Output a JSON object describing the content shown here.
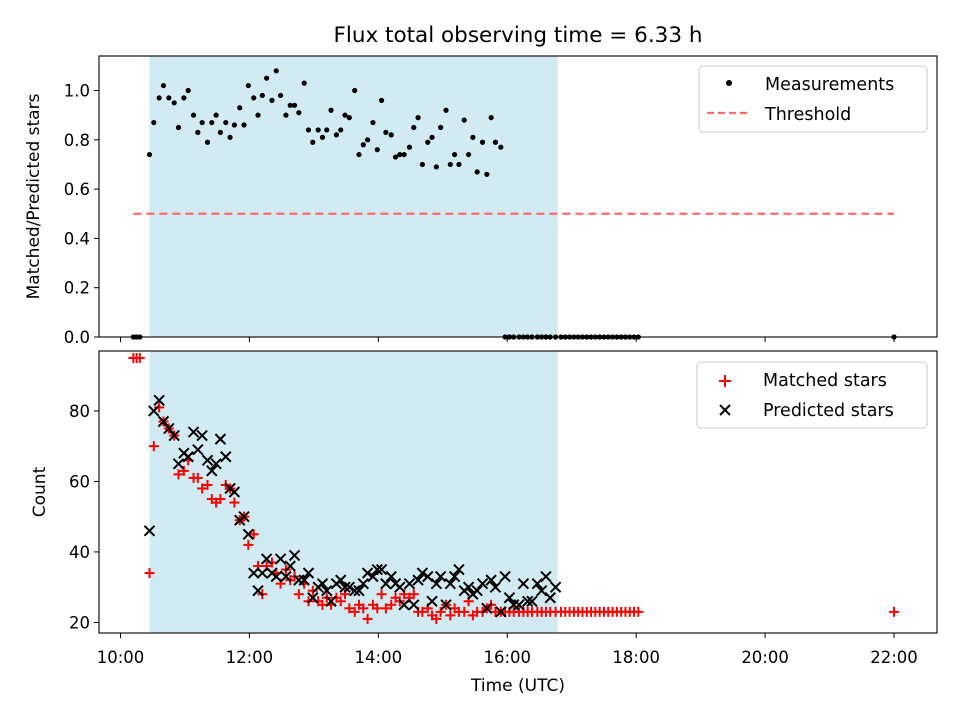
{
  "figure": {
    "title": "Flux total observing time = 6.33 h",
    "xlabel": "Time (UTC)",
    "colors": {
      "shade": "#add8e6",
      "threshold": "#ff6b6b",
      "matched": "#ff0000",
      "predicted": "#000000",
      "measurements": "#000000"
    }
  },
  "chart_data": [
    {
      "type": "scatter",
      "ylabel": "Matched/Predicted stars",
      "xlim": [
        "09:40",
        "22:40"
      ],
      "ylim": [
        0,
        1.14
      ],
      "yticks": [
        0.0,
        0.2,
        0.4,
        0.6,
        0.8,
        1.0
      ],
      "xticks": [
        "10:00",
        "12:00",
        "14:00",
        "16:00",
        "18:00",
        "20:00",
        "22:00"
      ],
      "shaded_interval": [
        "10:27",
        "16:47"
      ],
      "legend_position": "top-right",
      "threshold": {
        "name": "Threshold",
        "value": 0.5,
        "x_range": [
          "10:12",
          "22:00"
        ],
        "style": "dashed"
      },
      "series": [
        {
          "name": "Measurements",
          "x": [
            "10:12",
            "10:15",
            "10:18",
            "10:27",
            "10:31",
            "10:36",
            "10:40",
            "10:45",
            "10:50",
            "10:54",
            "10:59",
            "11:03",
            "11:08",
            "11:12",
            "11:16",
            "11:21",
            "11:25",
            "11:29",
            "11:33",
            "11:38",
            "11:42",
            "11:46",
            "11:51",
            "11:55",
            "11:59",
            "12:04",
            "12:08",
            "12:12",
            "12:16",
            "12:21",
            "12:25",
            "12:29",
            "12:34",
            "12:38",
            "12:42",
            "12:46",
            "12:51",
            "12:55",
            "12:59",
            "13:04",
            "13:08",
            "13:12",
            "13:16",
            "13:21",
            "13:25",
            "13:29",
            "13:33",
            "13:38",
            "13:42",
            "13:46",
            "13:50",
            "13:55",
            "13:59",
            "14:03",
            "14:07",
            "14:12",
            "14:16",
            "14:20",
            "14:24",
            "14:29",
            "14:33",
            "14:37",
            "14:41",
            "14:46",
            "14:50",
            "14:54",
            "14:58",
            "15:03",
            "15:07",
            "15:11",
            "15:15",
            "15:20",
            "15:24",
            "15:28",
            "15:32",
            "15:37",
            "15:41",
            "15:45",
            "15:49",
            "15:54",
            "15:58",
            "16:02",
            "16:06",
            "16:11",
            "16:15",
            "16:19",
            "16:23",
            "16:28",
            "16:32",
            "16:36",
            "16:40",
            "16:45",
            "16:50",
            "16:54",
            "16:58",
            "17:02",
            "17:06",
            "17:10",
            "17:14",
            "17:18",
            "17:22",
            "17:26",
            "17:30",
            "17:34",
            "17:38",
            "17:42",
            "17:46",
            "17:50",
            "17:54",
            "17:58",
            "18:02",
            "22:00"
          ],
          "y": [
            0,
            0,
            0,
            0.74,
            0.87,
            0.97,
            1.02,
            0.97,
            0.95,
            0.85,
            0.97,
            1.0,
            0.9,
            0.83,
            0.87,
            0.79,
            0.87,
            0.9,
            0.83,
            0.87,
            0.81,
            0.86,
            0.93,
            0.86,
            1.02,
            0.97,
            0.9,
            0.98,
            1.05,
            0.96,
            1.08,
            0.98,
            0.9,
            0.94,
            0.94,
            0.91,
            1.03,
            0.84,
            0.79,
            0.84,
            0.81,
            0.84,
            0.92,
            0.82,
            0.84,
            0.9,
            0.89,
            1.0,
            0.74,
            0.78,
            0.8,
            0.87,
            0.76,
            0.96,
            0.83,
            0.82,
            0.73,
            0.74,
            0.74,
            0.77,
            0.85,
            0.89,
            0.7,
            0.79,
            0.81,
            0.69,
            0.85,
            0.92,
            0.7,
            0.74,
            0.7,
            0.88,
            0.74,
            0.81,
            0.67,
            0.79,
            0.66,
            0.89,
            0.79,
            0.77,
            0,
            0,
            0,
            0,
            0,
            0,
            0,
            0,
            0,
            0,
            0,
            0,
            0,
            0,
            0,
            0,
            0,
            0,
            0,
            0,
            0,
            0,
            0,
            0,
            0,
            0,
            0,
            0,
            0,
            0,
            0,
            0
          ]
        }
      ]
    },
    {
      "type": "scatter",
      "ylabel": "Count",
      "xlabel": "Time (UTC)",
      "xlim": [
        "09:40",
        "22:40"
      ],
      "ylim": [
        17,
        97
      ],
      "yticks": [
        20,
        40,
        60,
        80
      ],
      "xticks": [
        "10:00",
        "12:00",
        "14:00",
        "16:00",
        "18:00",
        "20:00",
        "22:00"
      ],
      "shaded_interval": [
        "10:27",
        "16:47"
      ],
      "legend_position": "top-right",
      "series": [
        {
          "name": "Matched stars",
          "marker": "plus",
          "x": [
            "10:12",
            "10:15",
            "10:18",
            "10:27",
            "10:31",
            "10:36",
            "10:40",
            "10:45",
            "10:50",
            "10:54",
            "10:59",
            "11:03",
            "11:08",
            "11:12",
            "11:16",
            "11:21",
            "11:25",
            "11:29",
            "11:33",
            "11:38",
            "11:42",
            "11:46",
            "11:51",
            "11:55",
            "11:59",
            "12:04",
            "12:08",
            "12:12",
            "12:16",
            "12:21",
            "12:25",
            "12:29",
            "12:34",
            "12:38",
            "12:42",
            "12:46",
            "12:51",
            "12:55",
            "12:59",
            "13:04",
            "13:08",
            "13:12",
            "13:16",
            "13:21",
            "13:25",
            "13:29",
            "13:33",
            "13:38",
            "13:42",
            "13:46",
            "13:50",
            "13:55",
            "13:59",
            "14:03",
            "14:07",
            "14:12",
            "14:16",
            "14:20",
            "14:24",
            "14:29",
            "14:33",
            "14:37",
            "14:41",
            "14:46",
            "14:50",
            "14:54",
            "14:58",
            "15:03",
            "15:07",
            "15:11",
            "15:15",
            "15:20",
            "15:24",
            "15:28",
            "15:32",
            "15:37",
            "15:41",
            "15:45",
            "15:49",
            "15:54",
            "15:58",
            "16:02",
            "16:06",
            "16:11",
            "16:15",
            "16:19",
            "16:23",
            "16:28",
            "16:32",
            "16:36",
            "16:40",
            "16:45",
            "16:50",
            "16:54",
            "16:58",
            "17:02",
            "17:06",
            "17:10",
            "17:14",
            "17:18",
            "17:22",
            "17:26",
            "17:30",
            "17:34",
            "17:38",
            "17:42",
            "17:46",
            "17:50",
            "17:54",
            "17:58",
            "18:02",
            "22:00"
          ],
          "y": [
            95,
            95,
            95,
            34,
            70,
            81,
            77,
            75,
            73,
            62,
            63,
            66,
            61,
            61,
            58,
            59,
            55,
            54,
            55,
            59,
            58,
            54,
            49,
            50,
            42,
            45,
            36,
            28,
            36,
            37,
            34,
            31,
            35,
            32,
            33,
            28,
            31,
            26,
            29,
            26,
            25,
            27,
            25,
            27,
            26,
            28,
            24,
            23,
            25,
            24,
            21,
            25,
            24,
            28,
            24,
            25,
            27,
            26,
            28,
            27,
            28,
            23,
            23,
            24,
            22,
            21,
            23,
            25,
            22,
            24,
            23,
            23,
            26,
            22,
            23,
            23,
            24,
            25,
            23,
            23,
            23,
            23,
            23,
            23,
            23,
            23,
            23,
            23,
            23,
            23,
            23,
            23,
            23,
            23,
            23,
            23,
            23,
            23,
            23,
            23,
            23,
            23,
            23,
            23,
            23,
            23,
            23,
            23,
            23,
            23,
            23,
            23
          ]
        },
        {
          "name": "Predicted stars",
          "marker": "x",
          "x": [
            "10:27",
            "10:31",
            "10:36",
            "10:40",
            "10:45",
            "10:50",
            "10:54",
            "10:59",
            "11:03",
            "11:08",
            "11:12",
            "11:16",
            "11:21",
            "11:25",
            "11:29",
            "11:33",
            "11:38",
            "11:42",
            "11:46",
            "11:51",
            "11:55",
            "11:59",
            "12:04",
            "12:08",
            "12:12",
            "12:16",
            "12:21",
            "12:25",
            "12:29",
            "12:34",
            "12:38",
            "12:42",
            "12:46",
            "12:51",
            "12:55",
            "12:59",
            "13:04",
            "13:08",
            "13:12",
            "13:16",
            "13:21",
            "13:25",
            "13:29",
            "13:33",
            "13:38",
            "13:42",
            "13:46",
            "13:50",
            "13:55",
            "13:59",
            "14:03",
            "14:07",
            "14:12",
            "14:16",
            "14:20",
            "14:24",
            "14:29",
            "14:33",
            "14:37",
            "14:41",
            "14:46",
            "14:50",
            "14:54",
            "14:58",
            "15:03",
            "15:07",
            "15:11",
            "15:15",
            "15:20",
            "15:24",
            "15:28",
            "15:32",
            "15:37",
            "15:41",
            "15:45",
            "15:49",
            "15:54",
            "15:58",
            "16:02",
            "16:06",
            "16:11",
            "16:15",
            "16:19",
            "16:23",
            "16:28",
            "16:32",
            "16:36",
            "16:40",
            "16:45"
          ],
          "y": [
            46,
            80,
            83,
            77,
            75,
            73,
            65,
            68,
            67,
            74,
            69,
            73,
            66,
            63,
            65,
            72,
            67,
            58,
            57,
            49,
            50,
            45,
            34,
            29,
            34,
            38,
            34,
            33,
            38,
            33,
            36,
            39,
            32,
            32,
            34,
            27,
            30,
            31,
            29,
            26,
            31,
            32,
            30,
            30,
            29,
            29,
            31,
            34,
            33,
            35,
            35,
            31,
            33,
            31,
            30,
            25,
            31,
            25,
            32,
            34,
            33,
            26,
            31,
            33,
            25,
            31,
            33,
            35,
            29,
            30,
            28,
            29,
            31,
            24,
            32,
            30,
            23,
            33,
            27,
            25,
            25,
            31,
            26,
            26,
            31,
            29,
            33,
            27,
            30
          ]
        }
      ]
    }
  ]
}
